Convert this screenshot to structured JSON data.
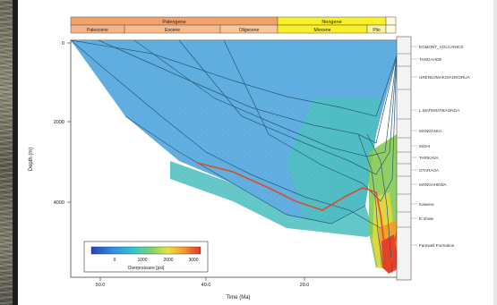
{
  "chart_data": {
    "type": "area",
    "title": "",
    "xlabel": "Time (Ma)",
    "ylabel": "Depth (m)",
    "xlim": [
      70,
      0
    ],
    "ylim": [
      0,
      6000
    ],
    "yticks": [
      "0",
      "2000",
      "4000"
    ],
    "xticks": [
      "50.0",
      "40.0",
      "20.0"
    ],
    "timescale": {
      "epochs": [
        "Paleogene",
        "Neogene"
      ],
      "periods": [
        "Paleocene",
        "Eocene",
        "Oligocene",
        "Miocene",
        "Plio"
      ]
    },
    "colorbar": {
      "label": "Overpressure [psi]",
      "ticks": [
        "0",
        "1000",
        "2000",
        "3000"
      ]
    },
    "formations": [
      "EGMONT_VOLCANICS",
      "TANGAHOE",
      "URENUI/MAKOIAOKORUA",
      "L.MATEMATEAONGA",
      "MANGANUI",
      "MOHI",
      "TARIKAVA",
      "OTARAOA",
      "MANGAHEWA",
      "Kaiwera",
      "E.Shale",
      "Farewell Formation"
    ],
    "colors": {
      "sky": "#4aa3dc",
      "teal": "#4dbfbf",
      "green": "#82c850",
      "yellow": "#e8d83a",
      "orange": "#f39a2a",
      "red": "#e0332a"
    }
  }
}
